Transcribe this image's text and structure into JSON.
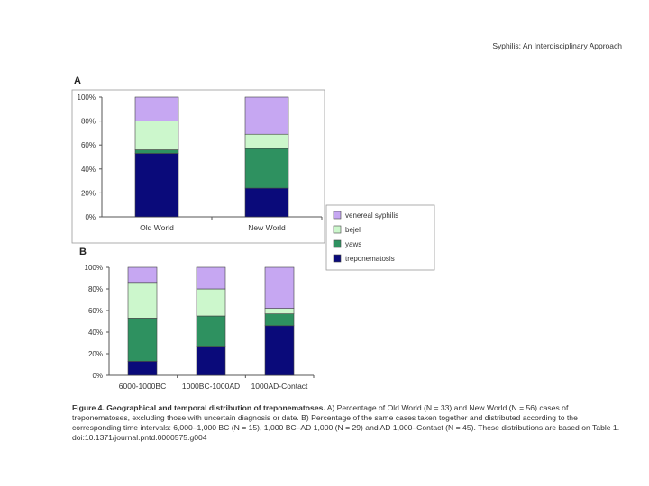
{
  "header": {
    "title": "Syphilis: An Interdisciplinary Approach"
  },
  "colors": {
    "treponematosis": "#0a0a7a",
    "yaws": "#2e9160",
    "bejel": "#ccf7cc",
    "venereal_syphilis": "#c6a7f2",
    "outline": "#444444"
  },
  "legend": {
    "items": [
      "venereal syphilis",
      "bejel",
      "yaws",
      "treponematosis"
    ],
    "color_keys": [
      "venereal_syphilis",
      "bejel",
      "yaws",
      "treponematosis"
    ]
  },
  "chart_data": [
    {
      "panel_label": "A",
      "type": "bar",
      "stacked": true,
      "categories": [
        "Old World",
        "New World"
      ],
      "series": [
        {
          "name": "treponematosis",
          "values": [
            53,
            24
          ]
        },
        {
          "name": "yaws",
          "values": [
            3,
            33
          ]
        },
        {
          "name": "bejel",
          "values": [
            24,
            12
          ]
        },
        {
          "name": "venereal syphilis",
          "values": [
            20,
            31
          ]
        }
      ],
      "ylim": [
        0,
        100
      ],
      "yticks": [
        "0%",
        "20%",
        "40%",
        "60%",
        "80%",
        "100%"
      ]
    },
    {
      "panel_label": "B",
      "type": "bar",
      "stacked": true,
      "categories": [
        "6000-1000BC",
        "1000BC-1000AD",
        "1000AD-Contact"
      ],
      "series": [
        {
          "name": "treponematosis",
          "values": [
            13,
            27,
            46
          ]
        },
        {
          "name": "yaws",
          "values": [
            40,
            28,
            11
          ]
        },
        {
          "name": "bejel",
          "values": [
            33,
            25,
            5
          ]
        },
        {
          "name": "venereal syphilis",
          "values": [
            14,
            20,
            38
          ]
        }
      ],
      "ylim": [
        0,
        100
      ],
      "yticks": [
        "0%",
        "20%",
        "40%",
        "60%",
        "80%",
        "100%"
      ]
    }
  ],
  "caption": {
    "title": "Figure 4. Geographical and temporal distribution of treponematoses.",
    "body": " A) Percentage of Old World (N = 33) and New World (N = 56) cases of treponematoses, excluding those with uncertain diagnosis or date. B) Percentage of the same cases taken together and distributed according to the corresponding time intervals: 6,000–1,000 BC (N = 15), 1,000 BC–AD 1,000 (N = 29) and AD 1,000–Contact (N = 45). These distributions are based on Table 1.",
    "doi": "doi:10.1371/journal.pntd.0000575.g004"
  }
}
